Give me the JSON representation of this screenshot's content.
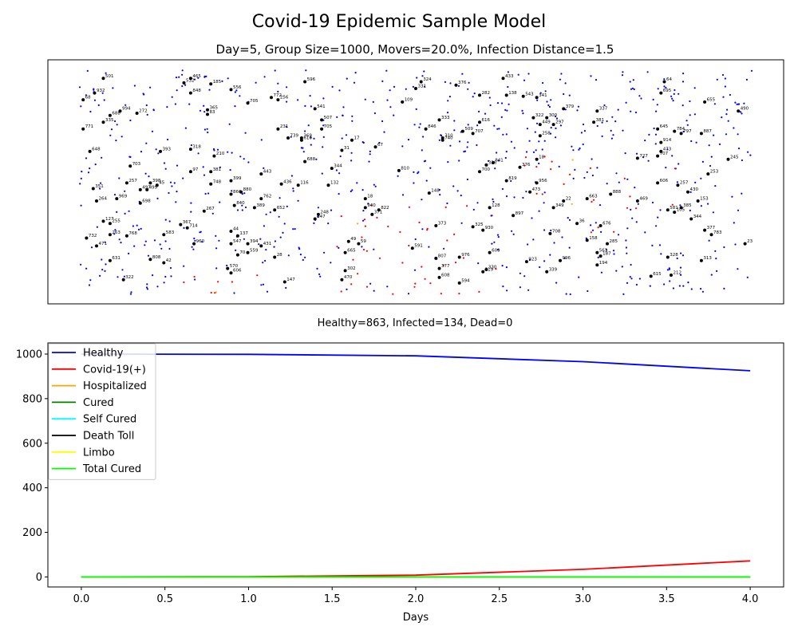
{
  "figure": {
    "suptitle": "Covid-19 Epidemic Sample Model"
  },
  "chart_data": [
    {
      "type": "scatter",
      "title": "Day=5, Group Size=1000, Movers=20.0%, Infection Distance=1.5",
      "xlabel": "Healthy=863, Infected=134, Dead=0",
      "ylabel": "",
      "xlim": [
        0,
        100
      ],
      "ylim": [
        0,
        100
      ],
      "axis_ticks": "hidden",
      "colors": {
        "healthy": "#0000ff",
        "infected": "#ff0000",
        "hospitalized": "#ffa500",
        "mover": "#000000"
      },
      "movers": [
        {
          "id": "501",
          "x": 3.5,
          "y": 96
        },
        {
          "id": "465",
          "x": 16.5,
          "y": 96
        },
        {
          "id": "532",
          "x": 15.5,
          "y": 94
        },
        {
          "id": "185",
          "x": 19.5,
          "y": 93.5
        },
        {
          "id": "596",
          "x": 33.5,
          "y": 94.5
        },
        {
          "id": "324",
          "x": 50.8,
          "y": 94.5
        },
        {
          "id": "433",
          "x": 63,
          "y": 96
        },
        {
          "id": "64",
          "x": 87,
          "y": 94.5
        },
        {
          "id": "932",
          "x": 2.2,
          "y": 89.5
        },
        {
          "id": "848",
          "x": 16.5,
          "y": 89.5
        },
        {
          "id": "556",
          "x": 22.5,
          "y": 91
        },
        {
          "id": "331",
          "x": 50,
          "y": 91.5
        },
        {
          "id": "376",
          "x": 56,
          "y": 93
        },
        {
          "id": "282",
          "x": 59.5,
          "y": 88.5
        },
        {
          "id": "695",
          "x": 86.5,
          "y": 89.5
        },
        {
          "id": "68",
          "x": 0.5,
          "y": 86.5
        },
        {
          "id": "772",
          "x": 28.5,
          "y": 87.5
        },
        {
          "id": "256",
          "x": 29.5,
          "y": 86.5
        },
        {
          "id": "705",
          "x": 25,
          "y": 85
        },
        {
          "id": "109",
          "x": 48,
          "y": 85.5
        },
        {
          "id": "138",
          "x": 63.5,
          "y": 88.5
        },
        {
          "id": "543",
          "x": 66,
          "y": 88
        },
        {
          "id": "341",
          "x": 68,
          "y": 87.5
        },
        {
          "id": "655",
          "x": 93,
          "y": 85.5
        },
        {
          "id": "994",
          "x": 6,
          "y": 81.5
        },
        {
          "id": "272",
          "x": 8.5,
          "y": 80.5
        },
        {
          "id": "365",
          "x": 19,
          "y": 82
        },
        {
          "id": "83",
          "x": 19,
          "y": 80
        },
        {
          "id": "541",
          "x": 35,
          "y": 82.5
        },
        {
          "id": "379",
          "x": 72,
          "y": 82.5
        },
        {
          "id": "337",
          "x": 77,
          "y": 81.5
        },
        {
          "id": "490",
          "x": 98,
          "y": 81.5
        },
        {
          "id": "688",
          "x": 4.5,
          "y": 79.5
        },
        {
          "id": "335",
          "x": 3.5,
          "y": 76.5
        },
        {
          "id": "507",
          "x": 36,
          "y": 77.5
        },
        {
          "id": "333",
          "x": 53.5,
          "y": 77.5
        },
        {
          "id": "616",
          "x": 59.5,
          "y": 76.5
        },
        {
          "id": "322",
          "x": 67.5,
          "y": 78.5
        },
        {
          "id": "300",
          "x": 69.5,
          "y": 78.5
        },
        {
          "id": "449",
          "x": 68.5,
          "y": 75.5
        },
        {
          "id": "297",
          "x": 70.5,
          "y": 75.5
        },
        {
          "id": "381",
          "x": 76.5,
          "y": 76.5
        },
        {
          "id": "771",
          "x": 0.5,
          "y": 73.5
        },
        {
          "id": "231",
          "x": 29.5,
          "y": 73.5
        },
        {
          "id": "705b",
          "x": 36,
          "y": 73.5
        },
        {
          "id": "846",
          "x": 51.5,
          "y": 73.5
        },
        {
          "id": "509",
          "x": 57,
          "y": 72.5
        },
        {
          "id": "707",
          "x": 58.5,
          "y": 71.5
        },
        {
          "id": "645",
          "x": 86,
          "y": 73.5
        },
        {
          "id": "784",
          "x": 88.5,
          "y": 72.5
        },
        {
          "id": "797",
          "x": 89.5,
          "y": 71.5
        },
        {
          "id": "887",
          "x": 92.5,
          "y": 71.5
        },
        {
          "id": "739",
          "x": 31,
          "y": 69.5
        },
        {
          "id": "369",
          "x": 33,
          "y": 69.5
        },
        {
          "id": "610",
          "x": 33,
          "y": 68.5
        },
        {
          "id": "17",
          "x": 40.5,
          "y": 68.5
        },
        {
          "id": "310",
          "x": 54,
          "y": 69.5
        },
        {
          "id": "740",
          "x": 54,
          "y": 68.5
        },
        {
          "id": "258",
          "x": 68.5,
          "y": 70.5
        },
        {
          "id": "914",
          "x": 86.5,
          "y": 67.5
        },
        {
          "id": "648",
          "x": 1.5,
          "y": 63.5
        },
        {
          "id": "393",
          "x": 12,
          "y": 63.5
        },
        {
          "id": "318",
          "x": 16.5,
          "y": 64.5
        },
        {
          "id": "31",
          "x": 39,
          "y": 64
        },
        {
          "id": "67",
          "x": 44,
          "y": 65.5
        },
        {
          "id": "473",
          "x": 86.5,
          "y": 63.5
        },
        {
          "id": "707b",
          "x": 86,
          "y": 61.5
        },
        {
          "id": "727",
          "x": 83,
          "y": 60.5
        },
        {
          "id": "245",
          "x": 96.5,
          "y": 60
        },
        {
          "id": "210",
          "x": 20,
          "y": 61.5
        },
        {
          "id": "688b",
          "x": 33.5,
          "y": 59
        },
        {
          "id": "18",
          "x": 68,
          "y": 60
        },
        {
          "id": "841",
          "x": 61.5,
          "y": 58.5
        },
        {
          "id": "326",
          "x": 60.5,
          "y": 57.5
        },
        {
          "id": "376b",
          "x": 65.5,
          "y": 56.5
        },
        {
          "id": "703",
          "x": 7.5,
          "y": 57
        },
        {
          "id": "97",
          "x": 16.5,
          "y": 54.5
        },
        {
          "id": "381b",
          "x": 19.5,
          "y": 54.5
        },
        {
          "id": "443",
          "x": 27,
          "y": 53.5
        },
        {
          "id": "344",
          "x": 37.5,
          "y": 56
        },
        {
          "id": "810",
          "x": 47.5,
          "y": 55
        },
        {
          "id": "700",
          "x": 59.5,
          "y": 54.5
        },
        {
          "id": "253",
          "x": 93.5,
          "y": 53.5
        },
        {
          "id": "257",
          "x": 7,
          "y": 49.5
        },
        {
          "id": "398",
          "x": 10.5,
          "y": 49.5
        },
        {
          "id": "45",
          "x": 11.5,
          "y": 48.5
        },
        {
          "id": "748",
          "x": 19.5,
          "y": 49
        },
        {
          "id": "399",
          "x": 22.5,
          "y": 50.5
        },
        {
          "id": "436",
          "x": 30,
          "y": 49
        },
        {
          "id": "116",
          "x": 32.5,
          "y": 48.5
        },
        {
          "id": "132",
          "x": 37,
          "y": 48.5
        },
        {
          "id": "819",
          "x": 63.5,
          "y": 50.5
        },
        {
          "id": "956",
          "x": 68,
          "y": 49.5
        },
        {
          "id": "606",
          "x": 86,
          "y": 49.5
        },
        {
          "id": "257b",
          "x": 89,
          "y": 48.5
        },
        {
          "id": "351",
          "x": 2,
          "y": 47
        },
        {
          "id": "497",
          "x": 9,
          "y": 46.5
        },
        {
          "id": "499",
          "x": 10,
          "y": 46.5
        },
        {
          "id": "880",
          "x": 24,
          "y": 45.5
        },
        {
          "id": "866",
          "x": 22.5,
          "y": 44.5
        },
        {
          "id": "148",
          "x": 52,
          "y": 45
        },
        {
          "id": "473b",
          "x": 67,
          "y": 45.5
        },
        {
          "id": "888",
          "x": 79,
          "y": 44.5
        },
        {
          "id": "430",
          "x": 90.5,
          "y": 45.5
        },
        {
          "id": "264",
          "x": 2.5,
          "y": 41.5
        },
        {
          "id": "969",
          "x": 5.5,
          "y": 42.5
        },
        {
          "id": "698",
          "x": 9,
          "y": 40.5
        },
        {
          "id": "762",
          "x": 27,
          "y": 42.5
        },
        {
          "id": "18b",
          "x": 42.5,
          "y": 42.5
        },
        {
          "id": "22",
          "x": 72,
          "y": 41.5
        },
        {
          "id": "663",
          "x": 75.5,
          "y": 42.5
        },
        {
          "id": "469",
          "x": 83,
          "y": 41.5
        },
        {
          "id": "153",
          "x": 92,
          "y": 41.5
        },
        {
          "id": "840",
          "x": 23,
          "y": 39.5
        },
        {
          "id": "389",
          "x": 26,
          "y": 38.5
        },
        {
          "id": "652",
          "x": 29,
          "y": 37.5
        },
        {
          "id": "267",
          "x": 18.5,
          "y": 37
        },
        {
          "id": "940",
          "x": 42.5,
          "y": 38.5
        },
        {
          "id": "822",
          "x": 44.5,
          "y": 37.5
        },
        {
          "id": "128",
          "x": 61,
          "y": 38.5
        },
        {
          "id": "349",
          "x": 70.5,
          "y": 38.5
        },
        {
          "id": "581",
          "x": 87.5,
          "y": 37.5
        },
        {
          "id": "385",
          "x": 89.5,
          "y": 38.5
        },
        {
          "id": "105",
          "x": 88.5,
          "y": 36.5
        },
        {
          "id": "248",
          "x": 35.5,
          "y": 35.5
        },
        {
          "id": "371",
          "x": 43.5,
          "y": 35.5
        },
        {
          "id": "897",
          "x": 64.5,
          "y": 35
        },
        {
          "id": "344b",
          "x": 91,
          "y": 33.5
        },
        {
          "id": "127",
          "x": 3.5,
          "y": 32.5
        },
        {
          "id": "255",
          "x": 4.5,
          "y": 31.5
        },
        {
          "id": "367",
          "x": 15,
          "y": 31
        },
        {
          "id": "714",
          "x": 16,
          "y": 29.5
        },
        {
          "id": "347",
          "x": 35,
          "y": 33.5
        },
        {
          "id": "373",
          "x": 53,
          "y": 30.5
        },
        {
          "id": "325",
          "x": 58.5,
          "y": 30
        },
        {
          "id": "930",
          "x": 60,
          "y": 28.5
        },
        {
          "id": "36",
          "x": 74,
          "y": 31.5
        },
        {
          "id": "676",
          "x": 77.5,
          "y": 30.5
        },
        {
          "id": "377",
          "x": 93,
          "y": 28.5
        },
        {
          "id": "263",
          "x": 4.5,
          "y": 26.5
        },
        {
          "id": "768",
          "x": 7,
          "y": 26
        },
        {
          "id": "583",
          "x": 12.5,
          "y": 26.5
        },
        {
          "id": "44",
          "x": 22.5,
          "y": 28
        },
        {
          "id": "137",
          "x": 23.5,
          "y": 26
        },
        {
          "id": "708",
          "x": 70,
          "y": 27
        },
        {
          "id": "783",
          "x": 94,
          "y": 26.5
        },
        {
          "id": "732",
          "x": 1,
          "y": 25
        },
        {
          "id": "960",
          "x": 17,
          "y": 22.5
        },
        {
          "id": "547",
          "x": 22.5,
          "y": 22.5
        },
        {
          "id": "394",
          "x": 25,
          "y": 22.5
        },
        {
          "id": "431",
          "x": 27,
          "y": 21.5
        },
        {
          "id": "49",
          "x": 40,
          "y": 23.5
        },
        {
          "id": "59",
          "x": 41.5,
          "y": 22.5
        },
        {
          "id": "158",
          "x": 75.5,
          "y": 24
        },
        {
          "id": "285",
          "x": 78.5,
          "y": 22.5
        },
        {
          "id": "23",
          "x": 99,
          "y": 22.5
        },
        {
          "id": "471",
          "x": 2.5,
          "y": 21.5
        },
        {
          "id": "70",
          "x": 23.5,
          "y": 17.5
        },
        {
          "id": "559",
          "x": 25,
          "y": 18.5
        },
        {
          "id": "665",
          "x": 39.5,
          "y": 18.5
        },
        {
          "id": "591",
          "x": 49.5,
          "y": 20.5
        },
        {
          "id": "807",
          "x": 53,
          "y": 16
        },
        {
          "id": "976",
          "x": 56.5,
          "y": 16.5
        },
        {
          "id": "609",
          "x": 61,
          "y": 18.5
        },
        {
          "id": "563",
          "x": 77,
          "y": 18.5
        },
        {
          "id": "187",
          "x": 77.5,
          "y": 17
        },
        {
          "id": "328",
          "x": 87.5,
          "y": 16.5
        },
        {
          "id": "631",
          "x": 4.5,
          "y": 15
        },
        {
          "id": "808",
          "x": 10.5,
          "y": 15.5
        },
        {
          "id": "42",
          "x": 12.5,
          "y": 14
        },
        {
          "id": "28",
          "x": 29,
          "y": 16.5
        },
        {
          "id": "923",
          "x": 66.5,
          "y": 14.5
        },
        {
          "id": "996",
          "x": 71.5,
          "y": 15
        },
        {
          "id": "194",
          "x": 77,
          "y": 13
        },
        {
          "id": "313",
          "x": 92.5,
          "y": 15
        },
        {
          "id": "570",
          "x": 22,
          "y": 11.5
        },
        {
          "id": "606b",
          "x": 22.5,
          "y": 9.5
        },
        {
          "id": "302",
          "x": 39.5,
          "y": 10.5
        },
        {
          "id": "377b",
          "x": 53.5,
          "y": 11.5
        },
        {
          "id": "330",
          "x": 60.5,
          "y": 11
        },
        {
          "id": "319",
          "x": 60,
          "y": 10
        },
        {
          "id": "339",
          "x": 69.5,
          "y": 10
        },
        {
          "id": "615",
          "x": 85,
          "y": 8
        },
        {
          "id": "212",
          "x": 88,
          "y": 8.5
        },
        {
          "id": "322b",
          "x": 6.5,
          "y": 6.5
        },
        {
          "id": "147",
          "x": 30.5,
          "y": 5.5
        },
        {
          "id": "470",
          "x": 39,
          "y": 6.5
        },
        {
          "id": "608",
          "x": 53.5,
          "y": 7.5
        },
        {
          "id": "594",
          "x": 56.5,
          "y": 5
        }
      ]
    },
    {
      "type": "line",
      "title": "",
      "xlabel": "Days",
      "ylabel": "",
      "x": [
        0,
        1,
        2,
        3,
        4
      ],
      "xlim": [
        -0.2,
        4.2
      ],
      "ylim": [
        -45,
        1050
      ],
      "xticks": [
        "0.0",
        "0.5",
        "1.0",
        "1.5",
        "2.0",
        "2.5",
        "3.0",
        "3.5",
        "4.0"
      ],
      "yticks": [
        "0",
        "200",
        "400",
        "600",
        "800",
        "1000"
      ],
      "legend_position": "top-left",
      "series": [
        {
          "name": "Healthy",
          "color": "#0000ff",
          "values": [
            1000,
            999,
            992,
            966,
            925
          ]
        },
        {
          "name": "Covid-19(+)",
          "color": "#ff0000",
          "values": [
            0,
            1,
            8,
            34,
            72
          ]
        },
        {
          "name": "Hospitalized",
          "color": "#ffa500",
          "values": [
            0,
            0,
            0,
            0,
            0
          ]
        },
        {
          "name": "Cured",
          "color": "#008000",
          "values": [
            0,
            0,
            0,
            0,
            0
          ]
        },
        {
          "name": "Self Cured",
          "color": "#00ffff",
          "values": [
            0,
            0,
            0,
            0,
            0
          ]
        },
        {
          "name": "Death Toll",
          "color": "#000000",
          "values": [
            0,
            0,
            0,
            0,
            0
          ]
        },
        {
          "name": "Limbo",
          "color": "#ffff00",
          "values": [
            0,
            0,
            0,
            0,
            0
          ]
        },
        {
          "name": "Total Cured",
          "color": "#00ff00",
          "values": [
            0,
            0,
            0,
            0,
            0
          ]
        }
      ]
    }
  ]
}
